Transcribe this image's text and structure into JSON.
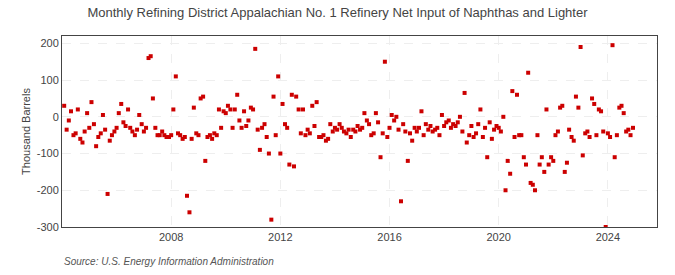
{
  "chart_data": {
    "type": "scatter",
    "title": "Monthly Refining District Appalachian No. 1 Refinery Net Input of Naphthas and Lighter",
    "ylabel": "Thousand Barrels",
    "annotations": [
      "Source: U.S. Energy Information Administration"
    ],
    "color": "#cc0000",
    "marker": "square",
    "grid": true,
    "xlim": [
      2004.0,
      2025.8
    ],
    "xticks": [
      2008,
      2012,
      2016,
      2020,
      2024
    ],
    "ylim": [
      -300,
      220
    ],
    "yticks": [
      -300,
      -200,
      -100,
      0,
      100,
      200
    ],
    "x": [
      2004.08,
      2004.17,
      2004.25,
      2004.33,
      2004.42,
      2004.5,
      2004.58,
      2004.67,
      2004.75,
      2004.83,
      2004.92,
      2005.0,
      2005.08,
      2005.17,
      2005.25,
      2005.33,
      2005.42,
      2005.5,
      2005.58,
      2005.67,
      2005.75,
      2005.83,
      2005.92,
      2006.0,
      2006.08,
      2006.17,
      2006.25,
      2006.33,
      2006.42,
      2006.5,
      2006.58,
      2006.67,
      2006.75,
      2006.83,
      2006.92,
      2007.0,
      2007.08,
      2007.17,
      2007.25,
      2007.33,
      2007.42,
      2007.5,
      2007.58,
      2007.67,
      2007.75,
      2007.83,
      2007.92,
      2008.0,
      2008.08,
      2008.17,
      2008.25,
      2008.33,
      2008.42,
      2008.5,
      2008.58,
      2008.67,
      2008.75,
      2008.83,
      2008.92,
      2009.0,
      2009.08,
      2009.17,
      2009.25,
      2009.33,
      2009.42,
      2009.5,
      2009.58,
      2009.67,
      2009.75,
      2009.83,
      2009.92,
      2010.0,
      2010.08,
      2010.17,
      2010.25,
      2010.33,
      2010.42,
      2010.5,
      2010.58,
      2010.67,
      2010.75,
      2010.83,
      2010.92,
      2011.0,
      2011.08,
      2011.17,
      2011.25,
      2011.33,
      2011.42,
      2011.5,
      2011.58,
      2011.67,
      2011.75,
      2011.83,
      2011.92,
      2012.0,
      2012.08,
      2012.17,
      2012.25,
      2012.33,
      2012.42,
      2012.5,
      2012.58,
      2012.67,
      2012.75,
      2012.83,
      2012.92,
      2013.0,
      2013.08,
      2013.17,
      2013.25,
      2013.33,
      2013.42,
      2013.5,
      2013.58,
      2013.67,
      2013.75,
      2013.83,
      2013.92,
      2014.0,
      2014.08,
      2014.17,
      2014.25,
      2014.33,
      2014.42,
      2014.5,
      2014.58,
      2014.67,
      2014.75,
      2014.83,
      2014.92,
      2015.0,
      2015.08,
      2015.17,
      2015.25,
      2015.33,
      2015.42,
      2015.5,
      2015.58,
      2015.67,
      2015.75,
      2015.83,
      2015.92,
      2016.0,
      2016.08,
      2016.17,
      2016.25,
      2016.33,
      2016.42,
      2016.5,
      2016.58,
      2016.67,
      2016.75,
      2016.83,
      2016.92,
      2017.0,
      2017.08,
      2017.17,
      2017.25,
      2017.33,
      2017.42,
      2017.5,
      2017.58,
      2017.67,
      2017.75,
      2017.83,
      2017.92,
      2018.0,
      2018.08,
      2018.17,
      2018.25,
      2018.33,
      2018.42,
      2018.5,
      2018.58,
      2018.67,
      2018.75,
      2018.83,
      2018.92,
      2019.0,
      2019.08,
      2019.17,
      2019.25,
      2019.33,
      2019.42,
      2019.5,
      2019.58,
      2019.67,
      2019.75,
      2019.83,
      2019.92,
      2020.0,
      2020.08,
      2020.17,
      2020.25,
      2020.33,
      2020.42,
      2020.5,
      2020.58,
      2020.67,
      2020.75,
      2020.83,
      2020.92,
      2021.0,
      2021.08,
      2021.17,
      2021.25,
      2021.33,
      2021.42,
      2021.5,
      2021.58,
      2021.67,
      2021.75,
      2021.83,
      2021.92,
      2022.0,
      2022.08,
      2022.17,
      2022.25,
      2022.33,
      2022.42,
      2022.5,
      2022.58,
      2022.67,
      2022.75,
      2022.83,
      2022.92,
      2023.0,
      2023.08,
      2023.17,
      2023.25,
      2023.33,
      2023.42,
      2023.5,
      2023.58,
      2023.67,
      2023.75,
      2023.83,
      2023.92,
      2024.0,
      2024.08,
      2024.17,
      2024.25,
      2024.33,
      2024.42,
      2024.5,
      2024.58,
      2024.67,
      2024.75,
      2024.83,
      2024.92
    ],
    "values": [
      30,
      -35,
      -10,
      15,
      -50,
      -45,
      20,
      -60,
      -70,
      -40,
      10,
      -30,
      40,
      -20,
      -80,
      -55,
      -45,
      5,
      -35,
      -210,
      -65,
      -50,
      -40,
      -30,
      10,
      35,
      -15,
      -25,
      20,
      -30,
      -40,
      -50,
      -35,
      5,
      -20,
      -40,
      -30,
      160,
      165,
      50,
      -30,
      -50,
      -50,
      -40,
      -50,
      -55,
      -55,
      -50,
      20,
      110,
      -45,
      -50,
      -60,
      -55,
      -215,
      -260,
      -60,
      25,
      -45,
      -50,
      50,
      55,
      -120,
      -55,
      -50,
      -60,
      -45,
      -50,
      20,
      -30,
      15,
      10,
      30,
      20,
      -30,
      20,
      60,
      -10,
      -30,
      15,
      -25,
      -10,
      25,
      20,
      185,
      -35,
      -90,
      -30,
      -20,
      -55,
      -100,
      -280,
      55,
      -50,
      110,
      -100,
      35,
      -20,
      -30,
      -130,
      60,
      -135,
      55,
      20,
      -45,
      20,
      -50,
      -35,
      -45,
      30,
      -25,
      40,
      -55,
      -55,
      -50,
      -65,
      -60,
      -20,
      -40,
      -30,
      -35,
      -20,
      -30,
      -40,
      -45,
      -35,
      -55,
      -35,
      -40,
      -25,
      -35,
      -30,
      10,
      -10,
      -20,
      -50,
      -45,
      10,
      -15,
      -110,
      -45,
      150,
      -55,
      -30,
      5,
      -10,
      0,
      -35,
      -230,
      -20,
      -40,
      -120,
      -45,
      -65,
      -30,
      -40,
      -30,
      15,
      -50,
      -20,
      -35,
      -25,
      -40,
      -35,
      -30,
      -50,
      5,
      -25,
      -15,
      -10,
      -30,
      -20,
      -25,
      -15,
      0,
      -40,
      65,
      -70,
      -50,
      -25,
      -55,
      -45,
      -20,
      20,
      -55,
      -30,
      -110,
      -15,
      -60,
      -35,
      -25,
      -30,
      -40,
      0,
      -200,
      -120,
      -155,
      70,
      -55,
      60,
      -50,
      -50,
      -110,
      -130,
      120,
      -180,
      -185,
      -200,
      -50,
      -130,
      -110,
      -150,
      20,
      -130,
      -110,
      -120,
      -50,
      -40,
      25,
      30,
      -150,
      -125,
      -35,
      -55,
      -65,
      55,
      25,
      190,
      -105,
      -45,
      -40,
      -55,
      50,
      35,
      -50,
      20,
      15,
      -40,
      -300,
      -45,
      -55,
      195,
      -110,
      -50,
      25,
      30,
      10,
      -40,
      -35,
      -50,
      -30
    ]
  }
}
